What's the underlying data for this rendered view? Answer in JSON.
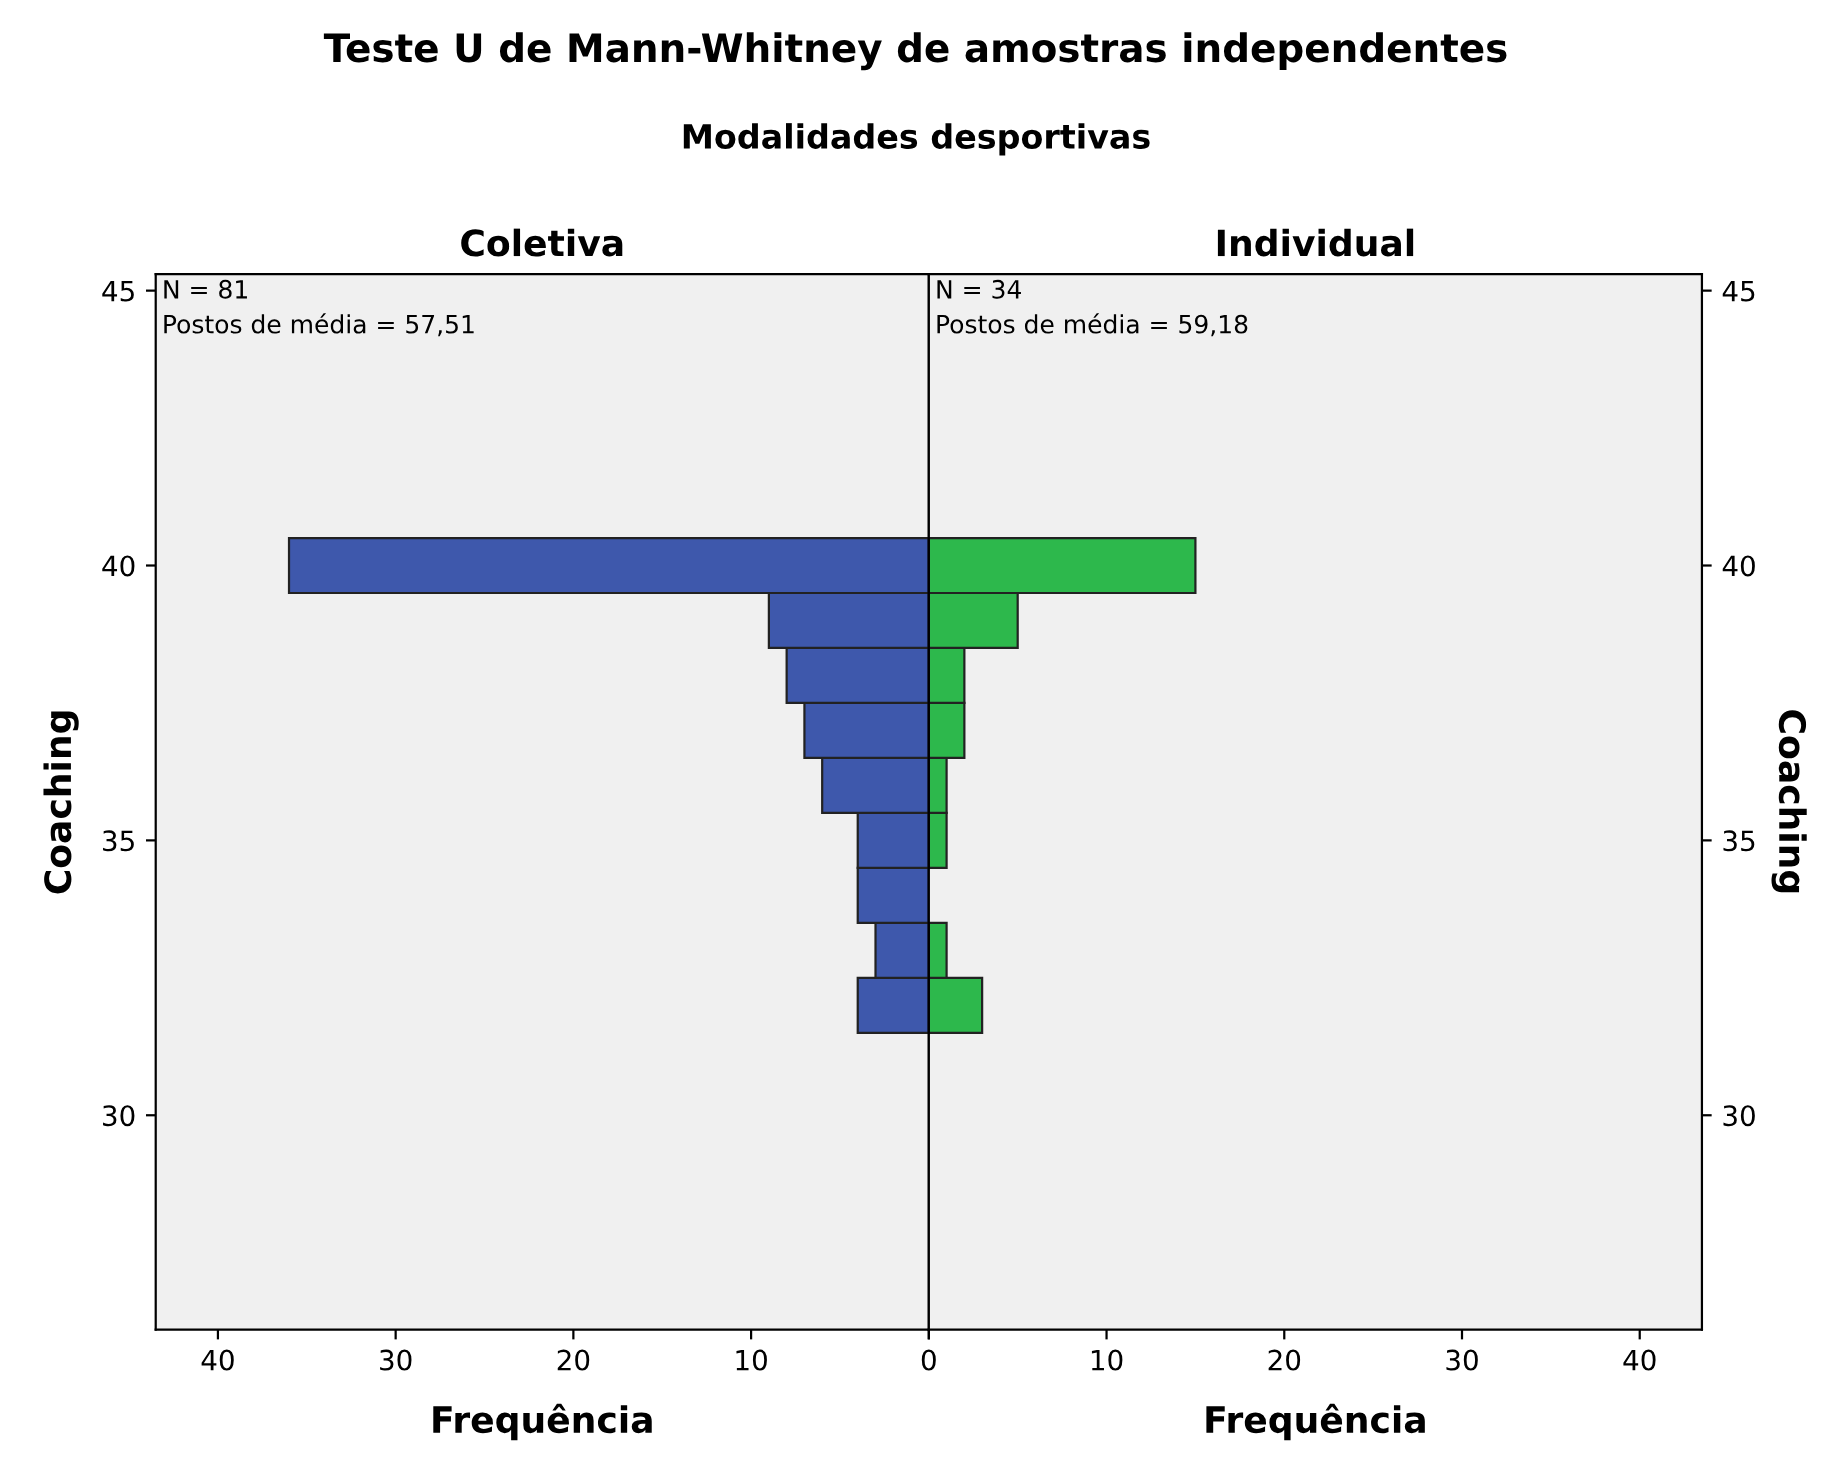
{
  "chart_data": [
    {
      "type": "histogram",
      "orientation": "horizontal",
      "title": "Teste U de Mann-Whitney de amostras independentes",
      "subtitle": "Modalidades desportivas",
      "annotations": [
        "Coletiva",
        "N = 81",
        "Postos de média = 57,51"
      ],
      "xlabel": "Frequência",
      "ylabel": "Coaching",
      "bins": [
        31.5,
        32.5,
        33.5,
        34.5,
        35.5,
        36.5,
        37.5,
        38.5,
        39.5,
        40.5
      ],
      "values": [
        4,
        3,
        4,
        4,
        6,
        7,
        8,
        9,
        36
      ],
      "color": "#3e58ac",
      "xlim": [
        43.5,
        0
      ],
      "xticks": [
        40,
        30,
        20,
        10,
        {
          "value": 0,
          "label": null
        }
      ],
      "ylim": [
        26.1,
        45.3
      ],
      "yticks": [
        30,
        35,
        40,
        45
      ],
      "grid": false
    },
    {
      "type": "histogram",
      "orientation": "horizontal",
      "annotations": [
        "Individual",
        "N = 34",
        "Postos de média = 59,18"
      ],
      "xlabel": "Frequência",
      "ylabel": "Coaching",
      "bins": [
        31.5,
        32.5,
        33.5,
        34.5,
        35.5,
        36.5,
        37.5,
        38.5,
        39.5,
        40.5
      ],
      "values": [
        3,
        1,
        0,
        1,
        1,
        2,
        2,
        5,
        15
      ],
      "color": "#2db84c",
      "xlim": [
        0,
        43.5
      ],
      "xticks": [
        0,
        10,
        20,
        30,
        40
      ],
      "ylim": [
        26.1,
        45.3
      ],
      "yticks": [
        30,
        35,
        40,
        45
      ],
      "grid": false
    }
  ]
}
